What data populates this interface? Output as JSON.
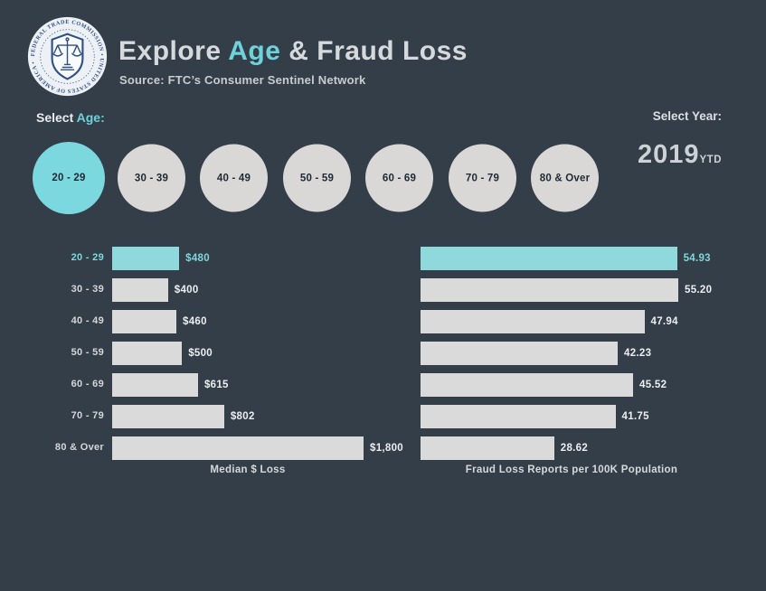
{
  "header": {
    "title_prefix": "Explore ",
    "title_highlight": "Age",
    "title_suffix": " & Fraud Loss",
    "subtitle": "Source: FTC’s Consumer Sentinel Network",
    "logo_ring_text": "FEDERAL TRADE COMMISSION • UNITED STATES OF AMERICA • MCMXV"
  },
  "filters": {
    "age_label_prefix": "Select ",
    "age_label_highlight": "Age:",
    "year_label": "Select Year:",
    "year_value": "2019",
    "year_suffix": "YTD",
    "age_options": [
      {
        "label": "20 - 29",
        "selected": true
      },
      {
        "label": "30 - 39",
        "selected": false
      },
      {
        "label": "40 - 49",
        "selected": false
      },
      {
        "label": "50 - 59",
        "selected": false
      },
      {
        "label": "60 - 69",
        "selected": false
      },
      {
        "label": "70 - 79",
        "selected": false
      },
      {
        "label": "80 & Over",
        "selected": false
      }
    ]
  },
  "colors": {
    "background": "#343E49",
    "accent_teal": "#7CD8DF",
    "bar_gray": "#D9DAD9",
    "bar_teal": "#8FD8DC",
    "text_light": "#E9ECEE",
    "seal_navy": "#2F5183"
  },
  "chart_data": [
    {
      "type": "bar",
      "orientation": "horizontal",
      "title": "Median $ Loss",
      "categories": [
        "20 - 29",
        "30 - 39",
        "40 - 49",
        "50 - 59",
        "60 - 69",
        "70 - 79",
        "80 & Over"
      ],
      "values": [
        480,
        400,
        460,
        500,
        615,
        802,
        1800
      ],
      "value_labels": [
        "$480",
        "$400",
        "$460",
        "$500",
        "$615",
        "$802",
        "$1,800"
      ],
      "xlim": [
        0,
        1800
      ],
      "grid": false,
      "highlight_index": 0,
      "highlight_color": "#8FD8DC",
      "bar_color": "#D9DAD9"
    },
    {
      "type": "bar",
      "orientation": "horizontal",
      "title": "Fraud Loss Reports per 100K Population",
      "categories": [
        "20 - 29",
        "30 - 39",
        "40 - 49",
        "50 - 59",
        "60 - 69",
        "70 - 79",
        "80 & Over"
      ],
      "values": [
        54.93,
        55.2,
        47.94,
        42.23,
        45.52,
        41.75,
        28.62
      ],
      "value_labels": [
        "54.93",
        "55.20",
        "47.94",
        "42.23",
        "45.52",
        "41.75",
        "28.62"
      ],
      "xlim": [
        0,
        55.2
      ],
      "grid": false,
      "highlight_index": 0,
      "highlight_color": "#8FD8DC",
      "bar_color": "#D9DAD9"
    }
  ]
}
